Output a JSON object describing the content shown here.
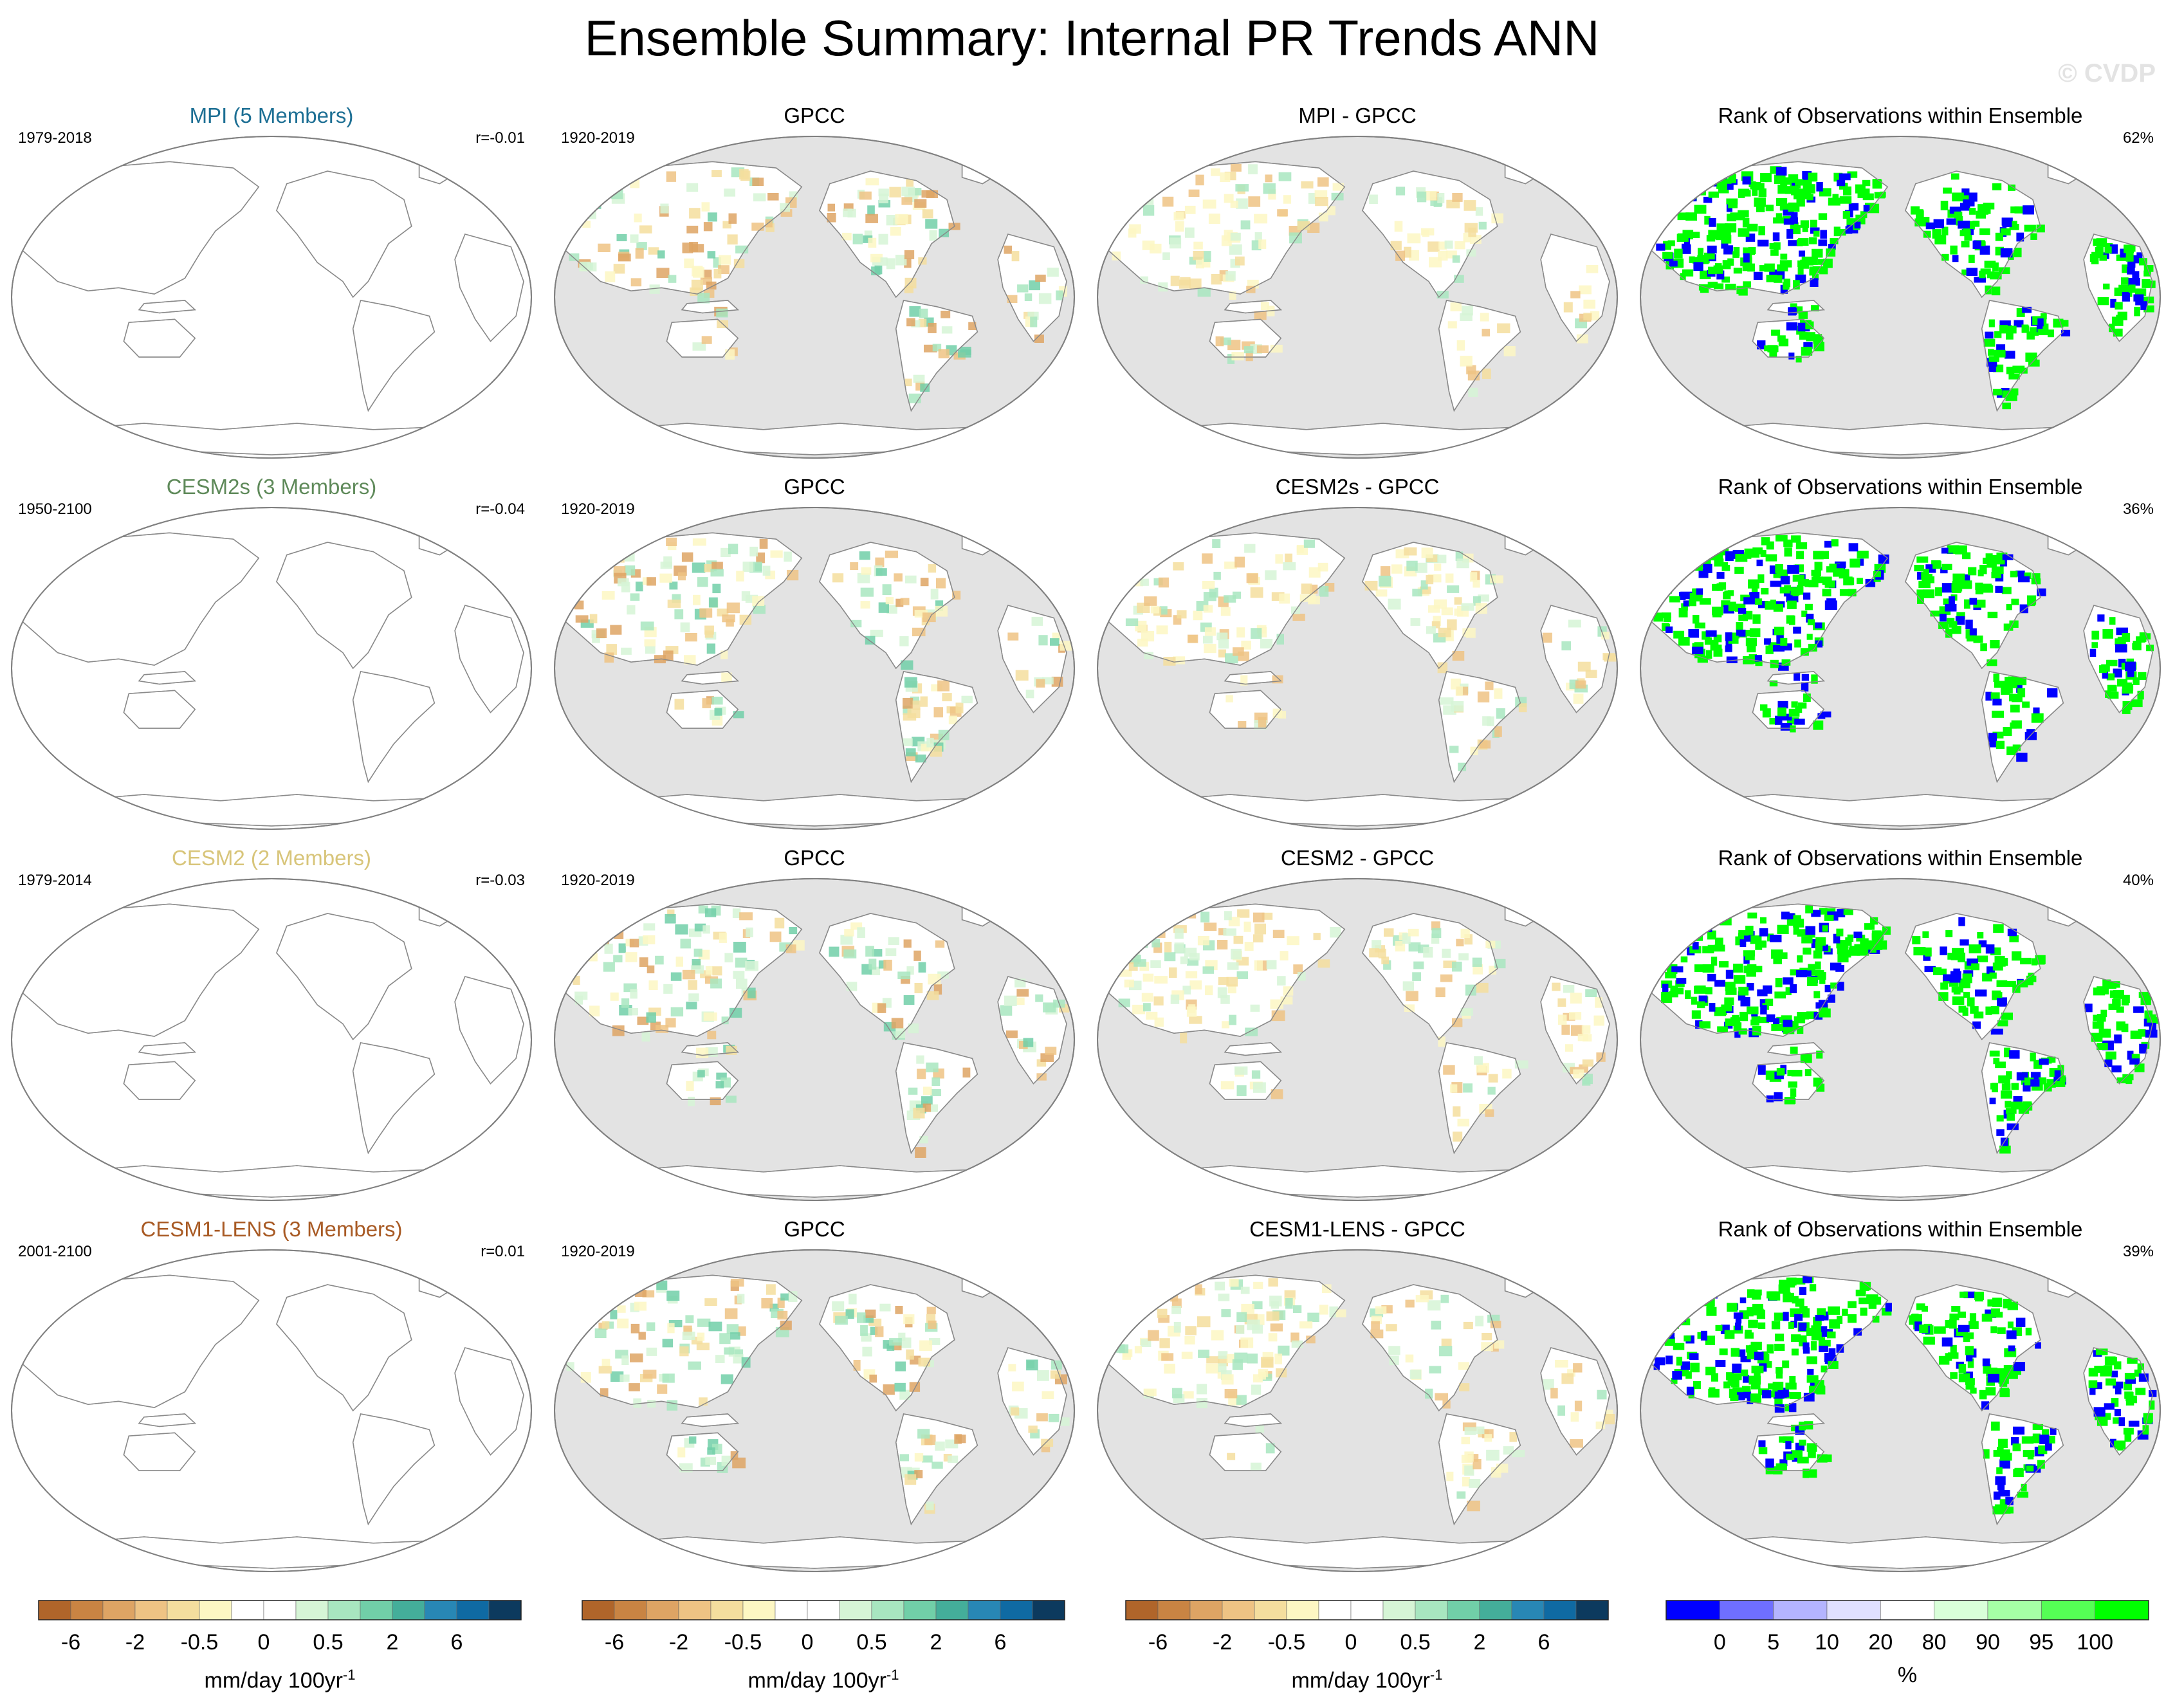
{
  "title": "Ensemble Summary: Internal PR Trends ANN",
  "watermark": "© CVDP",
  "rows": [
    {
      "model_title": "MPI (5 Members)",
      "model_color": "#1d6f94",
      "model_years": "1979-2018",
      "corr": "r=-0.01",
      "obs_title": "GPCC",
      "obs_years": "1920-2019",
      "diff_title": "MPI - GPCC",
      "rank_title": "Rank of Observations within Ensemble",
      "rank_pct": "62%"
    },
    {
      "model_title": "CESM2s (3 Members)",
      "model_color": "#5f8a5a",
      "model_years": "1950-2100",
      "corr": "r=-0.04",
      "obs_title": "GPCC",
      "obs_years": "1920-2019",
      "diff_title": "CESM2s - GPCC",
      "rank_title": "Rank of Observations within Ensemble",
      "rank_pct": "36%"
    },
    {
      "model_title": "CESM2 (2 Members)",
      "model_color": "#d8c57a",
      "model_years": "1979-2014",
      "corr": "r=-0.03",
      "obs_title": "GPCC",
      "obs_years": "1920-2019",
      "diff_title": "CESM2 - GPCC",
      "rank_title": "Rank of Observations within Ensemble",
      "rank_pct": "40%"
    },
    {
      "model_title": "CESM1-LENS (3 Members)",
      "model_color": "#a85a24",
      "model_years": "2001-2100",
      "corr": "r=0.01",
      "obs_title": "GPCC",
      "obs_years": "1920-2019",
      "diff_title": "CESM1-LENS - GPCC",
      "rank_title": "Rank of Observations within Ensemble",
      "rank_pct": "39%"
    }
  ],
  "trend_colorbar": {
    "label": "mm/day 100yr",
    "label_superscript": "-1",
    "colors": [
      "#b0652a",
      "#c98443",
      "#dea464",
      "#eec384",
      "#f4de9e",
      "#fdf7c3",
      "#ffffff",
      "#ffffff",
      "#d6f5d6",
      "#a8e6c0",
      "#71cfa8",
      "#44ae9a",
      "#2887b5",
      "#0f6aa3",
      "#0c3a5e"
    ],
    "tick_labels": [
      "-6",
      "-2",
      "-0.5",
      "0",
      "0.5",
      "2",
      "6"
    ],
    "tick_boundaries": [
      1,
      3,
      5,
      7,
      9,
      11,
      13
    ]
  },
  "rank_colorbar": {
    "label": "%",
    "colors": [
      "#0000ff",
      "#6f6fff",
      "#b4b4ff",
      "#e0e0ff",
      "#ffffff",
      "#d9ffd9",
      "#a6ffa6",
      "#55ff55",
      "#00ff00"
    ],
    "tick_labels": [
      "0",
      "5",
      "10",
      "20",
      "80",
      "90",
      "95",
      "100"
    ],
    "tick_boundaries": [
      1,
      2,
      3,
      4,
      5,
      6,
      7,
      8
    ]
  },
  "chart_data": [
    {
      "type": "heatmap",
      "title": "Ensemble Summary: Internal PR Trends ANN",
      "panels_per_row": [
        "model ensemble trend map",
        "GPCC observed trend map",
        "model minus GPCC difference map",
        "rank of observations within ensemble map"
      ],
      "projection": "global map, Pacific-centered",
      "trend_units": "mm/day 100yr-1",
      "trend_levels": [
        -6,
        -4,
        -2,
        -1,
        -0.5,
        -0.25,
        0,
        0.25,
        0.5,
        1,
        2,
        4,
        6
      ],
      "rank_units": "%",
      "rank_levels": [
        0,
        5,
        10,
        20,
        80,
        90,
        95,
        100
      ],
      "rank_percentages": {
        "MPI": 62,
        "CESM2s": 36,
        "CESM2": 40,
        "CESM1-LENS": 39
      },
      "pattern_correlations": {
        "MPI": -0.01,
        "CESM2s": -0.04,
        "CESM2": -0.03,
        "CESM1-LENS": 0.01
      }
    }
  ]
}
